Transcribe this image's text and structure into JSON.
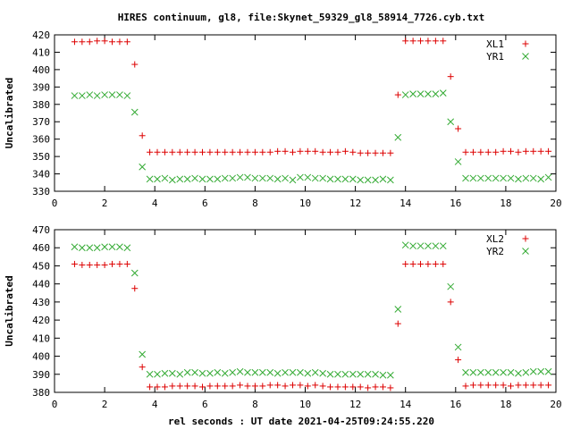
{
  "title": "HIRES continuum, gl8, file:Skynet_59329_gl8_58914_7726.cyb.txt",
  "xlabel": "rel seconds : UT date 2021-04-25T09:24:55.220",
  "colors": {
    "plus": "#dd0000",
    "cross": "#33aa33"
  },
  "chart_data": [
    {
      "type": "scatter",
      "ylabel": "Uncalibrated",
      "xlim": [
        0,
        20
      ],
      "ylim": [
        330,
        420
      ],
      "xticks": [
        "0",
        "2",
        "4",
        "6",
        "8",
        "10",
        "12",
        "14",
        "16",
        "18",
        "20"
      ],
      "yticks": [
        "330",
        "340",
        "350",
        "360",
        "370",
        "380",
        "390",
        "400",
        "410",
        "420"
      ],
      "legend_position": "top-right",
      "series": [
        {
          "name": "XL1",
          "marker": "plus",
          "x": [
            0.8,
            1.1,
            1.4,
            1.7,
            2.0,
            2.3,
            2.6,
            2.9,
            3.2,
            3.5,
            3.8,
            4.1,
            4.4,
            4.7,
            5.0,
            5.3,
            5.6,
            5.9,
            6.2,
            6.5,
            6.8,
            7.1,
            7.4,
            7.7,
            8.0,
            8.3,
            8.6,
            8.9,
            9.2,
            9.5,
            9.8,
            10.1,
            10.4,
            10.7,
            11.0,
            11.3,
            11.6,
            11.9,
            12.2,
            12.5,
            12.8,
            13.1,
            13.4,
            13.7,
            14.0,
            14.3,
            14.6,
            14.9,
            15.2,
            15.5,
            15.8,
            16.1,
            16.4,
            16.7,
            17.0,
            17.3,
            17.6,
            17.9,
            18.2,
            18.5,
            18.8,
            19.1,
            19.4,
            19.7
          ],
          "y": [
            416,
            416,
            416,
            416.5,
            416.5,
            416,
            416,
            416,
            403,
            362,
            352.5,
            352.5,
            352.5,
            352.5,
            352.5,
            352.5,
            352.5,
            352.5,
            352.5,
            352.5,
            352.5,
            352.5,
            352.5,
            352.5,
            352.5,
            352.5,
            352.5,
            353,
            353,
            352.5,
            353,
            353,
            353,
            352.5,
            352.5,
            352.5,
            353,
            352.5,
            352,
            352,
            352,
            352,
            352,
            385.5,
            416.5,
            416.5,
            416.5,
            416.5,
            416.5,
            416.5,
            396,
            366,
            352.5,
            352.5,
            352.5,
            352.5,
            352.5,
            353,
            353,
            352.5,
            353,
            353,
            353,
            353
          ]
        },
        {
          "name": "YR1",
          "marker": "cross",
          "x": [
            0.8,
            1.1,
            1.4,
            1.7,
            2.0,
            2.3,
            2.6,
            2.9,
            3.2,
            3.5,
            3.8,
            4.1,
            4.4,
            4.7,
            5.0,
            5.3,
            5.6,
            5.9,
            6.2,
            6.5,
            6.8,
            7.1,
            7.4,
            7.7,
            8.0,
            8.3,
            8.6,
            8.9,
            9.2,
            9.5,
            9.8,
            10.1,
            10.4,
            10.7,
            11.0,
            11.3,
            11.6,
            11.9,
            12.2,
            12.5,
            12.8,
            13.1,
            13.4,
            13.7,
            14.0,
            14.3,
            14.6,
            14.9,
            15.2,
            15.5,
            15.8,
            16.1,
            16.4,
            16.7,
            17.0,
            17.3,
            17.6,
            17.9,
            18.2,
            18.5,
            18.8,
            19.1,
            19.4,
            19.7
          ],
          "y": [
            385,
            385,
            385.5,
            385,
            385.5,
            385.5,
            385.5,
            385,
            375.5,
            344,
            337,
            337,
            337.5,
            336.5,
            337,
            337,
            337.5,
            337,
            337,
            337,
            337.5,
            337.5,
            338,
            338,
            337.5,
            337.5,
            337.5,
            337,
            337.5,
            336.5,
            338,
            338,
            337.5,
            337.5,
            337,
            337,
            337,
            337,
            336.5,
            336.5,
            336.5,
            337,
            336.5,
            361,
            385.5,
            386,
            386,
            386,
            386,
            386.5,
            370,
            347,
            337.5,
            337.5,
            337.5,
            337.5,
            337.5,
            337.5,
            337.5,
            337,
            337.5,
            337.5,
            337,
            338
          ]
        }
      ]
    },
    {
      "type": "scatter",
      "ylabel": "Uncalibrated",
      "xlim": [
        0,
        20
      ],
      "ylim": [
        380,
        470
      ],
      "xticks": [
        "0",
        "2",
        "4",
        "6",
        "8",
        "10",
        "12",
        "14",
        "16",
        "18",
        "20"
      ],
      "yticks": [
        "380",
        "390",
        "400",
        "410",
        "420",
        "430",
        "440",
        "450",
        "460",
        "470"
      ],
      "legend_position": "top-right",
      "series": [
        {
          "name": "XL2",
          "marker": "plus",
          "x": [
            0.8,
            1.1,
            1.4,
            1.7,
            2.0,
            2.3,
            2.6,
            2.9,
            3.2,
            3.5,
            3.8,
            4.1,
            4.4,
            4.7,
            5.0,
            5.3,
            5.6,
            5.9,
            6.2,
            6.5,
            6.8,
            7.1,
            7.4,
            7.7,
            8.0,
            8.3,
            8.6,
            8.9,
            9.2,
            9.5,
            9.8,
            10.1,
            10.4,
            10.7,
            11.0,
            11.3,
            11.6,
            11.9,
            12.2,
            12.5,
            12.8,
            13.1,
            13.4,
            13.7,
            14.0,
            14.3,
            14.6,
            14.9,
            15.2,
            15.5,
            15.8,
            16.1,
            16.4,
            16.7,
            17.0,
            17.3,
            17.6,
            17.9,
            18.2,
            18.5,
            18.8,
            19.1,
            19.4,
            19.7
          ],
          "y": [
            451,
            450.5,
            450.5,
            450.5,
            450.5,
            451,
            451,
            451,
            437.5,
            394,
            383,
            383,
            383,
            383.5,
            383.5,
            383.5,
            383.5,
            383,
            383.5,
            383.5,
            383.5,
            383.5,
            384,
            383.5,
            383.5,
            383.5,
            384,
            384,
            383.5,
            384,
            384,
            383.5,
            384,
            383.5,
            383,
            383,
            383,
            383,
            383,
            382.5,
            383,
            383,
            382.5,
            418,
            451,
            451,
            451,
            451,
            451,
            451,
            430,
            398,
            383.5,
            384,
            384,
            384,
            384,
            384,
            383.5,
            384,
            384,
            384,
            384,
            384
          ]
        },
        {
          "name": "YR2",
          "marker": "cross",
          "x": [
            0.8,
            1.1,
            1.4,
            1.7,
            2.0,
            2.3,
            2.6,
            2.9,
            3.2,
            3.5,
            3.8,
            4.1,
            4.4,
            4.7,
            5.0,
            5.3,
            5.6,
            5.9,
            6.2,
            6.5,
            6.8,
            7.1,
            7.4,
            7.7,
            8.0,
            8.3,
            8.6,
            8.9,
            9.2,
            9.5,
            9.8,
            10.1,
            10.4,
            10.7,
            11.0,
            11.3,
            11.6,
            11.9,
            12.2,
            12.5,
            12.8,
            13.1,
            13.4,
            13.7,
            14.0,
            14.3,
            14.6,
            14.9,
            15.2,
            15.5,
            15.8,
            16.1,
            16.4,
            16.7,
            17.0,
            17.3,
            17.6,
            17.9,
            18.2,
            18.5,
            18.8,
            19.1,
            19.4,
            19.7
          ],
          "y": [
            460.5,
            460,
            460,
            460,
            460.5,
            460.5,
            460.5,
            460,
            446,
            401,
            390,
            390,
            390.5,
            390.5,
            390,
            391,
            391,
            390.5,
            390.5,
            391,
            390.5,
            391,
            391.5,
            391,
            391,
            391,
            391,
            390.5,
            391,
            391,
            391,
            390.5,
            391,
            390.5,
            390,
            390,
            390,
            390,
            390,
            390,
            390,
            389.5,
            389.5,
            426,
            461.5,
            461,
            461,
            461,
            461,
            461,
            438.5,
            405,
            391,
            391,
            391,
            391,
            391,
            391,
            391,
            390.5,
            391,
            391.5,
            391.5,
            391.5
          ]
        }
      ]
    }
  ]
}
